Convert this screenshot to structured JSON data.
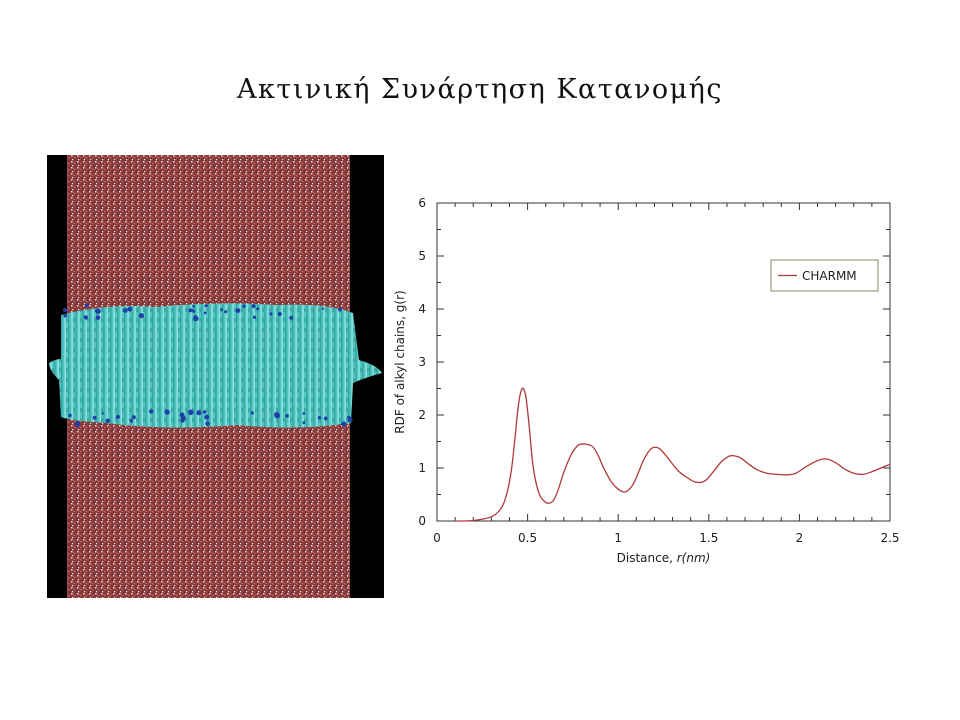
{
  "slide": {
    "title": "Ακτινική Συνάρτηση Κατανομής"
  },
  "simulation_image": {
    "background": "#000000",
    "water_color": "#8a3c3c",
    "bilayer_color": "#4fc6c2",
    "headgroup_color": "#1f3fa8"
  },
  "chart_data": {
    "type": "line",
    "title": "",
    "xlabel_prefix": "Distance, ",
    "xlabel_var": "r(nm)",
    "ylabel": "RDF of alkyl chains, g(r)",
    "xlim": [
      0,
      2.5
    ],
    "ylim": [
      0,
      6
    ],
    "xticks": [
      0,
      0.5,
      1,
      1.5,
      2,
      2.5
    ],
    "xtick_labels": [
      "0",
      "0.5",
      "1",
      "1.5",
      "2",
      "2.5"
    ],
    "yticks": [
      0,
      1,
      2,
      3,
      4,
      5,
      6
    ],
    "ytick_labels": [
      "0",
      "1",
      "2",
      "3",
      "4",
      "5",
      "6"
    ],
    "grid": false,
    "legend_position": "top-right",
    "series": [
      {
        "name": "CHARMM",
        "color": "#b03a3a",
        "x": [
          0.1,
          0.2,
          0.3,
          0.35,
          0.38,
          0.41,
          0.43,
          0.45,
          0.47,
          0.49,
          0.51,
          0.53,
          0.56,
          0.6,
          0.64,
          0.67,
          0.7,
          0.74,
          0.78,
          0.82,
          0.86,
          0.89,
          0.92,
          0.96,
          1.0,
          1.04,
          1.08,
          1.11,
          1.14,
          1.18,
          1.22,
          1.26,
          1.29,
          1.33,
          1.38,
          1.43,
          1.48,
          1.53,
          1.57,
          1.62,
          1.67,
          1.71,
          1.76,
          1.82,
          1.88,
          1.93,
          1.98,
          2.04,
          2.1,
          2.15,
          2.2,
          2.25,
          2.3,
          2.35,
          2.4,
          2.45,
          2.5
        ],
        "y": [
          0.0,
          0.01,
          0.08,
          0.22,
          0.45,
          0.95,
          1.55,
          2.2,
          2.5,
          2.35,
          1.75,
          1.05,
          0.55,
          0.35,
          0.38,
          0.6,
          0.92,
          1.25,
          1.43,
          1.45,
          1.4,
          1.23,
          1.0,
          0.75,
          0.6,
          0.55,
          0.68,
          0.9,
          1.15,
          1.36,
          1.38,
          1.25,
          1.12,
          0.95,
          0.82,
          0.73,
          0.76,
          0.95,
          1.12,
          1.23,
          1.2,
          1.1,
          0.98,
          0.9,
          0.88,
          0.87,
          0.9,
          1.03,
          1.14,
          1.17,
          1.1,
          0.98,
          0.9,
          0.88,
          0.93,
          1.0,
          1.07
        ]
      }
    ]
  }
}
